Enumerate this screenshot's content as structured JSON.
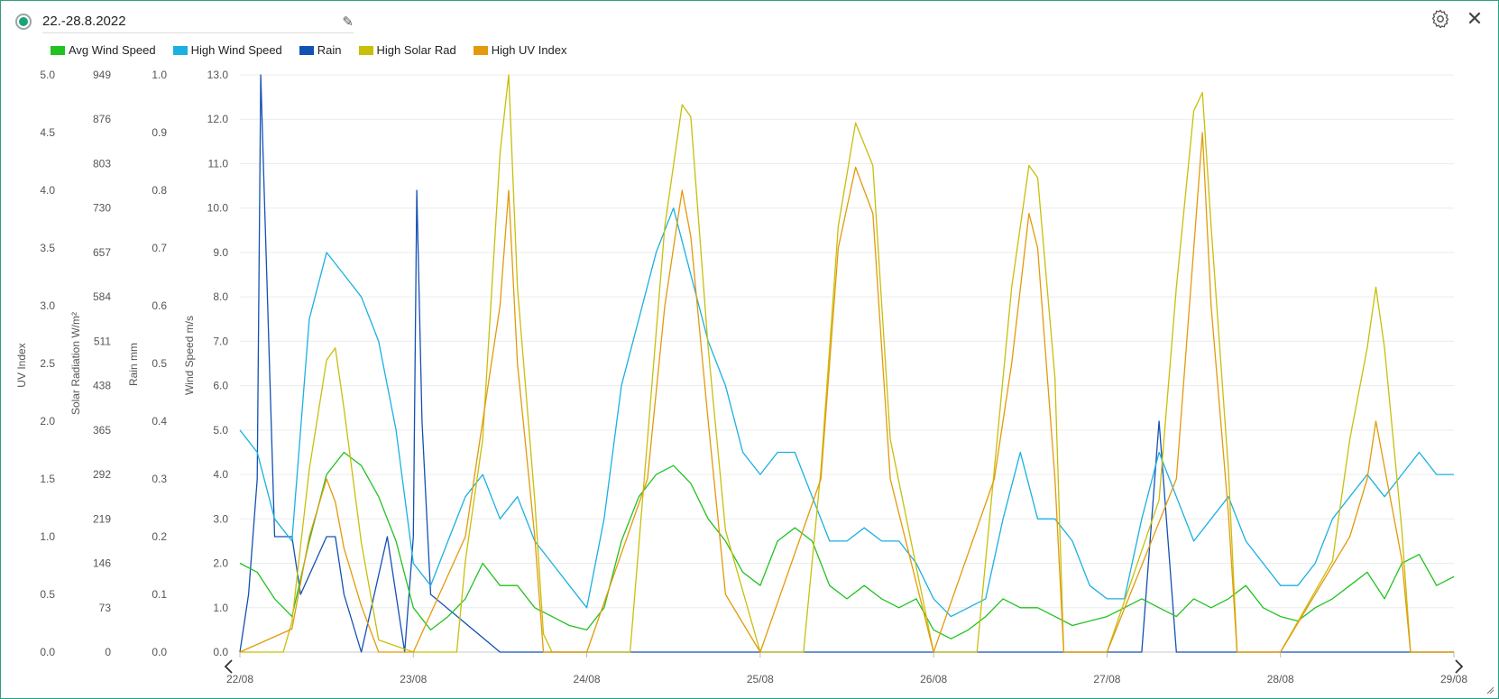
{
  "header": {
    "title": "22.-28.8.2022"
  },
  "icons": {
    "status": "status-dot-icon",
    "edit": "pencil-icon",
    "settings": "gear-icon",
    "close": "close-icon",
    "prev": "chevron-left-icon",
    "next": "chevron-right-icon"
  },
  "legend": [
    {
      "label": "Avg Wind Speed",
      "color": "#21c221"
    },
    {
      "label": "High Wind Speed",
      "color": "#1ab0e2"
    },
    {
      "label": "Rain",
      "color": "#1451b4"
    },
    {
      "label": "High Solar Rad",
      "color": "#c8bf0a"
    },
    {
      "label": "High UV Index",
      "color": "#e39a0c"
    }
  ],
  "chart_data": {
    "type": "line",
    "x_ticks": [
      "22/08",
      "23/08",
      "24/08",
      "25/08",
      "26/08",
      "27/08",
      "28/08",
      "29/08"
    ],
    "x_range": [
      "22/08",
      "29/08"
    ],
    "grid": true,
    "legend_position": "top-left",
    "axes": [
      {
        "title": "UV Index",
        "range": [
          0,
          5
        ],
        "ticks": [
          "5.0",
          "4.5",
          "4.0",
          "3.5",
          "3.0",
          "2.5",
          "2.0",
          "1.5",
          "1.0",
          "0.5",
          "0.0"
        ]
      },
      {
        "title": "Solar Radiation W/m²",
        "range": [
          0,
          949
        ],
        "ticks": [
          "949",
          "876",
          "803",
          "730",
          "657",
          "584",
          "511",
          "438",
          "365",
          "292",
          "219",
          "146",
          "73",
          "0"
        ]
      },
      {
        "title": "Rain mm",
        "range": [
          0,
          1
        ],
        "ticks": [
          "1.0",
          "0.9",
          "0.8",
          "0.7",
          "0.6",
          "0.5",
          "0.4",
          "0.3",
          "0.2",
          "0.1",
          "0.0"
        ]
      },
      {
        "title": "Wind Speed m/s",
        "range": [
          0,
          13
        ],
        "ticks": [
          "13.0",
          "12.0",
          "11.0",
          "10.0",
          "9.0",
          "8.0",
          "7.0",
          "6.0",
          "5.0",
          "4.0",
          "3.0",
          "2.0",
          "1.0",
          "0.0"
        ]
      }
    ],
    "series": [
      {
        "name": "Avg Wind Speed",
        "axis": "Wind Speed m/s",
        "x_days": [
          0,
          0.1,
          0.2,
          0.3,
          0.4,
          0.5,
          0.6,
          0.7,
          0.8,
          0.9,
          1.0,
          1.1,
          1.2,
          1.3,
          1.4,
          1.5,
          1.6,
          1.7,
          1.8,
          1.9,
          2.0,
          2.1,
          2.2,
          2.3,
          2.4,
          2.5,
          2.6,
          2.7,
          2.8,
          2.9,
          3.0,
          3.1,
          3.2,
          3.3,
          3.4,
          3.5,
          3.6,
          3.7,
          3.8,
          3.9,
          4.0,
          4.1,
          4.2,
          4.3,
          4.4,
          4.5,
          4.6,
          4.7,
          4.8,
          4.9,
          5.0,
          5.1,
          5.2,
          5.3,
          5.4,
          5.5,
          5.6,
          5.7,
          5.8,
          5.9,
          6.0,
          6.1,
          6.2,
          6.3,
          6.4,
          6.5,
          6.6,
          6.7,
          6.8,
          6.9,
          7.0
        ],
        "values": [
          2.0,
          1.8,
          1.2,
          0.8,
          2.5,
          4.0,
          4.5,
          4.2,
          3.5,
          2.5,
          1.0,
          0.5,
          0.8,
          1.2,
          2.0,
          1.5,
          1.5,
          1.0,
          0.8,
          0.6,
          0.5,
          1.0,
          2.5,
          3.5,
          4.0,
          4.2,
          3.8,
          3.0,
          2.5,
          1.8,
          1.5,
          2.5,
          2.8,
          2.5,
          1.5,
          1.2,
          1.5,
          1.2,
          1.0,
          1.2,
          0.5,
          0.3,
          0.5,
          0.8,
          1.2,
          1.0,
          1.0,
          0.8,
          0.6,
          0.7,
          0.8,
          1.0,
          1.2,
          1.0,
          0.8,
          1.2,
          1.0,
          1.2,
          1.5,
          1.0,
          0.8,
          0.7,
          1.0,
          1.2,
          1.5,
          1.8,
          1.2,
          2.0,
          2.2,
          1.5,
          1.7
        ]
      },
      {
        "name": "High Wind Speed",
        "axis": "Wind Speed m/s",
        "x_days": [
          0,
          0.1,
          0.2,
          0.3,
          0.4,
          0.5,
          0.6,
          0.7,
          0.8,
          0.9,
          1.0,
          1.1,
          1.2,
          1.3,
          1.4,
          1.5,
          1.6,
          1.7,
          1.8,
          1.9,
          2.0,
          2.1,
          2.2,
          2.3,
          2.4,
          2.5,
          2.6,
          2.7,
          2.8,
          2.9,
          3.0,
          3.1,
          3.2,
          3.3,
          3.4,
          3.5,
          3.6,
          3.7,
          3.8,
          3.9,
          4.0,
          4.1,
          4.2,
          4.3,
          4.4,
          4.5,
          4.6,
          4.7,
          4.8,
          4.9,
          5.0,
          5.1,
          5.2,
          5.3,
          5.4,
          5.5,
          5.6,
          5.7,
          5.8,
          5.9,
          6.0,
          6.1,
          6.2,
          6.3,
          6.4,
          6.5,
          6.6,
          6.7,
          6.8,
          6.9,
          7.0
        ],
        "values": [
          5.0,
          4.5,
          3.0,
          2.5,
          7.5,
          9.0,
          8.5,
          8.0,
          7.0,
          5.0,
          2.0,
          1.5,
          2.5,
          3.5,
          4.0,
          3.0,
          3.5,
          2.5,
          2.0,
          1.5,
          1.0,
          3.0,
          6.0,
          7.5,
          9.0,
          10.0,
          8.5,
          7.0,
          6.0,
          4.5,
          4.0,
          4.5,
          4.5,
          3.5,
          2.5,
          2.5,
          2.8,
          2.5,
          2.5,
          2.0,
          1.2,
          0.8,
          1.0,
          1.2,
          3.0,
          4.5,
          3.0,
          3.0,
          2.5,
          1.5,
          1.2,
          1.2,
          3.0,
          4.5,
          3.5,
          2.5,
          3.0,
          3.5,
          2.5,
          2.0,
          1.5,
          1.5,
          2.0,
          3.0,
          3.5,
          4.0,
          3.5,
          4.0,
          4.5,
          4.0,
          4.0
        ]
      },
      {
        "name": "Rain",
        "axis": "Rain mm",
        "x_days": [
          0,
          0.05,
          0.1,
          0.12,
          0.14,
          0.16,
          0.2,
          0.25,
          0.3,
          0.35,
          0.5,
          0.55,
          0.6,
          0.7,
          0.85,
          0.95,
          1.0,
          1.02,
          1.05,
          1.1,
          1.5,
          2.0,
          2.5,
          3.0,
          3.5,
          4.0,
          4.5,
          5.0,
          5.2,
          5.3,
          5.35,
          5.4,
          5.5,
          6.0,
          6.5,
          7.0
        ],
        "values": [
          0,
          0.1,
          0.3,
          1.0,
          0.8,
          0.6,
          0.2,
          0.2,
          0.2,
          0.1,
          0.2,
          0.2,
          0.1,
          0,
          0.2,
          0,
          0.2,
          0.8,
          0.4,
          0.1,
          0,
          0,
          0,
          0,
          0,
          0,
          0,
          0,
          0,
          0.4,
          0.2,
          0,
          0,
          0,
          0,
          0
        ]
      },
      {
        "name": "High Solar Rad",
        "axis": "Solar Radiation W/m²",
        "x_days": [
          0,
          0.25,
          0.3,
          0.4,
          0.5,
          0.55,
          0.6,
          0.7,
          0.8,
          1.0,
          1.25,
          1.3,
          1.4,
          1.5,
          1.55,
          1.6,
          1.7,
          1.75,
          1.8,
          2.0,
          2.25,
          2.35,
          2.45,
          2.55,
          2.6,
          2.7,
          2.8,
          3.0,
          3.25,
          3.35,
          3.45,
          3.55,
          3.65,
          3.75,
          4.0,
          4.25,
          4.35,
          4.45,
          4.55,
          4.6,
          4.7,
          4.75,
          5.0,
          5.3,
          5.4,
          5.5,
          5.55,
          5.6,
          5.7,
          5.75,
          6.0,
          6.3,
          6.4,
          6.5,
          6.55,
          6.6,
          6.7,
          6.75,
          7.0
        ],
        "values": [
          0,
          0,
          50,
          300,
          480,
          500,
          400,
          180,
          20,
          0,
          0,
          150,
          350,
          820,
          949,
          600,
          250,
          30,
          0,
          0,
          0,
          350,
          700,
          900,
          880,
          500,
          200,
          0,
          0,
          300,
          700,
          870,
          800,
          350,
          0,
          0,
          300,
          600,
          800,
          780,
          450,
          0,
          0,
          250,
          600,
          890,
          920,
          700,
          300,
          0,
          0,
          150,
          350,
          500,
          600,
          500,
          200,
          0,
          0
        ]
      },
      {
        "name": "High UV Index",
        "axis": "UV Index",
        "x_days": [
          0,
          0.3,
          0.4,
          0.5,
          0.55,
          0.6,
          0.7,
          0.8,
          1.0,
          1.3,
          1.4,
          1.5,
          1.55,
          1.6,
          1.7,
          1.75,
          2.0,
          2.35,
          2.45,
          2.55,
          2.6,
          2.7,
          2.8,
          3.0,
          3.35,
          3.45,
          3.55,
          3.65,
          3.75,
          4.0,
          4.35,
          4.45,
          4.55,
          4.6,
          4.7,
          4.75,
          5.0,
          5.4,
          5.5,
          5.55,
          5.6,
          5.7,
          5.75,
          6.0,
          6.4,
          6.5,
          6.55,
          6.6,
          6.7,
          6.75,
          7.0
        ],
        "values": [
          0,
          0.2,
          1.0,
          1.5,
          1.3,
          0.9,
          0.4,
          0,
          0,
          1.0,
          2.0,
          3.0,
          4.0,
          2.5,
          1.0,
          0,
          0,
          1.5,
          3.0,
          4.0,
          3.6,
          2.0,
          0.5,
          0,
          1.5,
          3.5,
          4.2,
          3.8,
          1.5,
          0,
          1.5,
          2.5,
          3.8,
          3.5,
          1.5,
          0,
          0,
          1.5,
          3.5,
          4.5,
          3.0,
          1.2,
          0,
          0,
          1.0,
          1.5,
          2.0,
          1.6,
          0.8,
          0,
          0
        ]
      }
    ]
  }
}
